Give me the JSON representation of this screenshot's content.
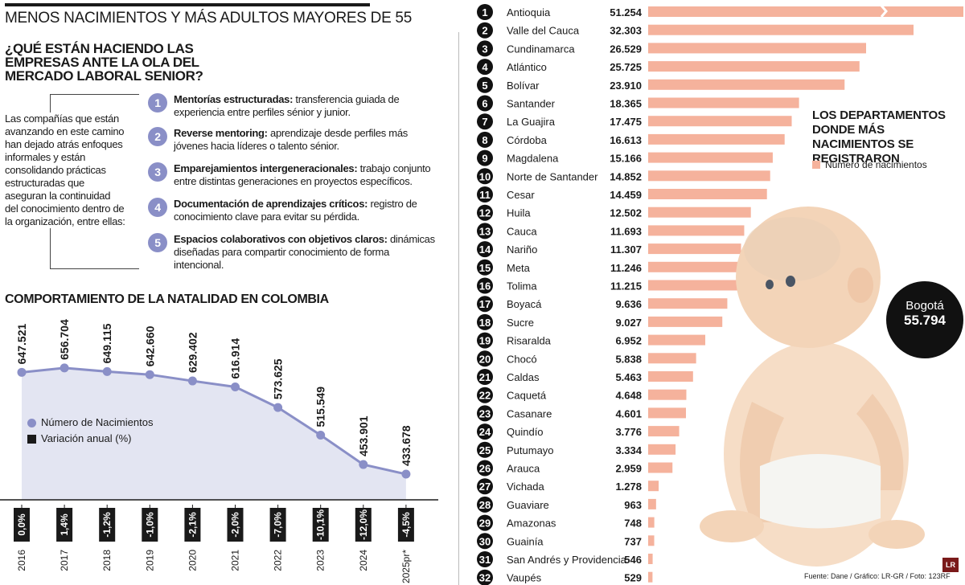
{
  "header": {
    "title": "MENOS NACIMIENTOS Y MÁS ADULTOS MAYORES DE 55",
    "subtitle": "¿QUÉ ESTÁN HACIENDO LAS EMPRESAS ANTE LA OLA DEL MERCADO LABORAL SENIOR?"
  },
  "intro": "Las compañías que están avanzando en este camino han dejado atrás enfoques informales y están consolidando prácticas estructuradas que aseguran la continuidad del conocimiento dentro de la organización, entre ellas:",
  "strategies": [
    {
      "num": "1",
      "bold": "Mentorías estructuradas:",
      "text": " transferencia guiada de experiencia entre perfiles sénior y junior."
    },
    {
      "num": "2",
      "bold": "Reverse mentoring:",
      "text": " aprendizaje desde perfiles más jóvenes hacia líderes o talento sénior."
    },
    {
      "num": "3",
      "bold": "Emparejamientos intergeneracionales:",
      "text": " trabajo conjunto entre distintas generaciones en proyectos específicos."
    },
    {
      "num": "4",
      "bold": "Documentación de aprendizajes críticos:",
      "text": " registro de conocimiento clave para evitar su pérdida."
    },
    {
      "num": "5",
      "bold": "Espacios colaborativos con objetivos claros:",
      "text": " dinámicas diseñadas para compartir conocimiento de forma intencional."
    }
  ],
  "colors": {
    "line": "#8a8fc7",
    "area": "#e3e5f2",
    "bar": "#f5b29c",
    "dark": "#1a1a1a"
  },
  "chart_data": [
    {
      "type": "line",
      "title": "COMPORTAMIENTO DE LA NATALIDAD EN COLOMBIA",
      "categories": [
        "2016",
        "2017",
        "2018",
        "2019",
        "2020",
        "2021",
        "2022",
        "2023",
        "2024",
        "2025pr*"
      ],
      "series": [
        {
          "name": "Número de Nacimientos",
          "values": [
            647521,
            656704,
            649115,
            642660,
            629402,
            616914,
            573625,
            515549,
            453901,
            433678
          ],
          "labels": [
            "647.521",
            "656.704",
            "649.115",
            "642.660",
            "629.402",
            "616.914",
            "573.625",
            "515.549",
            "453.901",
            "433.678"
          ]
        },
        {
          "name": "Variación anual (%)",
          "labels": [
            "0,0%",
            "1,4%",
            "-1,2%",
            "-1,0%",
            "-2,1%",
            "-2,0%",
            "-7,0%",
            "-10,1%",
            "-12,0%",
            "-4,5%"
          ]
        }
      ],
      "ylim": [
        400000,
        670000
      ]
    },
    {
      "type": "bar",
      "orientation": "horizontal",
      "title": "LOS DEPARTAMENTOS DONDE MÁS NACIMIENTOS SE REGISTRARON",
      "legend": "Número de nacimientos",
      "categories": [
        "Antioquia",
        "Valle del Cauca",
        "Cundinamarca",
        "Atlántico",
        "Bolívar",
        "Santander",
        "La Guajira",
        "Córdoba",
        "Magdalena",
        "Norte de Santander",
        "Cesar",
        "Huila",
        "Cauca",
        "Nariño",
        "Meta",
        "Tolima",
        "Boyacá",
        "Sucre",
        "Risaralda",
        "Chocó",
        "Caldas",
        "Caquetá",
        "Casanare",
        "Quindío",
        "Putumayo",
        "Arauca",
        "Vichada",
        "Guaviare",
        "Amazonas",
        "Guainía",
        "San Andrés y Providencia",
        "Vaupés"
      ],
      "values": [
        51254,
        32303,
        26529,
        25725,
        23910,
        18365,
        17475,
        16613,
        15166,
        14852,
        14459,
        12502,
        11693,
        11307,
        11246,
        11215,
        9636,
        9027,
        6952,
        5838,
        5463,
        4648,
        4601,
        3776,
        3334,
        2959,
        1278,
        963,
        748,
        737,
        546,
        529
      ],
      "labels": [
        "51.254",
        "32.303",
        "26.529",
        "25.725",
        "23.910",
        "18.365",
        "17.475",
        "16.613",
        "15.166",
        "14.852",
        "14.459",
        "12.502",
        "11.693",
        "11.307",
        "11.246",
        "11.215",
        "9.636",
        "9.027",
        "6.952",
        "5.838",
        "5.463",
        "4.648",
        "4.601",
        "3.776",
        "3.334",
        "2.959",
        "1.278",
        "963",
        "748",
        "737",
        "546",
        "529"
      ],
      "ranks": [
        "1",
        "2",
        "3",
        "4",
        "5",
        "6",
        "7",
        "8",
        "9",
        "10",
        "11",
        "12",
        "13",
        "14",
        "15",
        "16",
        "17",
        "18",
        "19",
        "20",
        "21",
        "22",
        "23",
        "24",
        "25",
        "26",
        "27",
        "28",
        "29",
        "30",
        "31",
        "32"
      ]
    }
  ],
  "bogota": {
    "label": "Bogotá",
    "value": "55.794"
  },
  "source": "Fuente: Dane / Gráfico: LR-GR / Foto: 123RF",
  "logo_text": "LR"
}
